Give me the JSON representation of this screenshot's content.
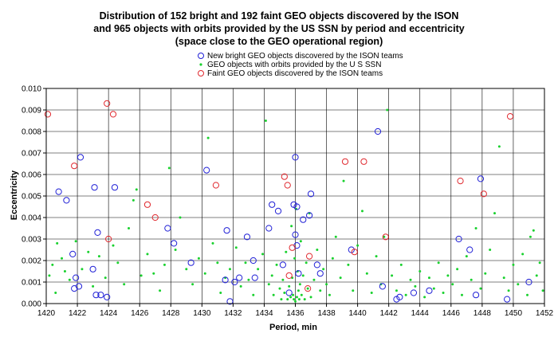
{
  "chart_data": {
    "type": "scatter",
    "title_lines": [
      "Distribution of 152 bright and 192 faint GEO objects discovered by the ISON",
      "and 965 objects with orbits provided by the US SSN by period and eccentricity",
      "(space close to the GEO operational region)"
    ],
    "xlabel": "Period, min",
    "ylabel": "Eccentricity",
    "xlim": [
      1420,
      1452
    ],
    "ylim": [
      0,
      0.01
    ],
    "x_ticks": [
      "1420",
      "1422",
      "1424",
      "1426",
      "1428",
      "1430",
      "1432",
      "1434",
      "1436",
      "1438",
      "1440",
      "1442",
      "1444",
      "1446",
      "1448",
      "1450",
      "1452"
    ],
    "y_ticks": [
      "0.000",
      "0.001",
      "0.002",
      "0.003",
      "0.004",
      "0.005",
      "0.006",
      "0.007",
      "0.008",
      "0.009",
      "0.010"
    ],
    "grid": true,
    "legend_position": "top-center",
    "series": [
      {
        "name": "New bright GEO objects discovered by the ISON teams",
        "marker": "open-circle",
        "color": "#1f1fd6",
        "points": [
          [
            1420.8,
            0.0052
          ],
          [
            1421.3,
            0.0048
          ],
          [
            1421.7,
            0.0023
          ],
          [
            1421.8,
            0.0007
          ],
          [
            1421.9,
            0.0012
          ],
          [
            1422.1,
            0.0008
          ],
          [
            1422.2,
            0.0068
          ],
          [
            1423.0,
            0.0016
          ],
          [
            1423.1,
            0.0054
          ],
          [
            1423.2,
            0.0004
          ],
          [
            1423.3,
            0.0033
          ],
          [
            1423.5,
            0.0004
          ],
          [
            1423.9,
            0.0003
          ],
          [
            1424.4,
            0.0054
          ],
          [
            1427.8,
            0.0035
          ],
          [
            1428.2,
            0.0028
          ],
          [
            1429.3,
            0.0019
          ],
          [
            1430.3,
            0.0062
          ],
          [
            1431.5,
            0.0011
          ],
          [
            1431.6,
            0.0034
          ],
          [
            1431.8,
            0.0001
          ],
          [
            1432.1,
            0.001
          ],
          [
            1432.4,
            0.0012
          ],
          [
            1432.9,
            0.0031
          ],
          [
            1433.4,
            0.0012
          ],
          [
            1433.3,
            0.002
          ],
          [
            1434.5,
            0.0046
          ],
          [
            1434.3,
            0.0035
          ],
          [
            1434.9,
            0.0043
          ],
          [
            1435.2,
            0.0018
          ],
          [
            1435.6,
            0.0005
          ],
          [
            1435.9,
            0.0046
          ],
          [
            1436.0,
            0.0068
          ],
          [
            1436.1,
            0.0045
          ],
          [
            1436.0,
            0.0032
          ],
          [
            1436.1,
            0.0027
          ],
          [
            1436.2,
            0.0014
          ],
          [
            1436.5,
            0.0039
          ],
          [
            1436.9,
            0.0041
          ],
          [
            1437.0,
            0.0051
          ],
          [
            1437.4,
            0.0018
          ],
          [
            1437.6,
            0.0014
          ],
          [
            1439.6,
            0.0025
          ],
          [
            1441.3,
            0.008
          ],
          [
            1441.6,
            0.0008
          ],
          [
            1442.5,
            0.0002
          ],
          [
            1442.7,
            0.0003
          ],
          [
            1443.6,
            0.0005
          ],
          [
            1444.6,
            0.0006
          ],
          [
            1446.5,
            0.003
          ],
          [
            1447.2,
            0.0025
          ],
          [
            1447.6,
            0.0004
          ],
          [
            1447.9,
            0.0058
          ],
          [
            1449.6,
            0.0002
          ],
          [
            1451.0,
            0.001
          ]
        ]
      },
      {
        "name": "GEO objects with orbits provided by the U S SSN",
        "marker": "dot",
        "color": "#19d12e",
        "points": [
          [
            1420.2,
            0.0013
          ],
          [
            1420.4,
            0.0018
          ],
          [
            1420.6,
            0.0005
          ],
          [
            1420.7,
            0.0028
          ],
          [
            1421.0,
            0.0021
          ],
          [
            1421.2,
            0.0015
          ],
          [
            1421.5,
            0.0011
          ],
          [
            1421.9,
            0.0029
          ],
          [
            1422.3,
            0.0016
          ],
          [
            1422.7,
            0.0024
          ],
          [
            1423.0,
            0.0008
          ],
          [
            1423.4,
            0.0022
          ],
          [
            1423.8,
            0.0012
          ],
          [
            1424.3,
            0.0027
          ],
          [
            1424.6,
            0.0019
          ],
          [
            1425.0,
            0.0009
          ],
          [
            1425.3,
            0.0035
          ],
          [
            1425.6,
            0.0048
          ],
          [
            1425.8,
            0.0053
          ],
          [
            1426.1,
            0.0013
          ],
          [
            1426.5,
            0.0023
          ],
          [
            1426.9,
            0.0014
          ],
          [
            1427.3,
            0.0006
          ],
          [
            1427.6,
            0.0018
          ],
          [
            1427.9,
            0.0063
          ],
          [
            1428.3,
            0.0025
          ],
          [
            1428.6,
            0.004
          ],
          [
            1429.0,
            0.0016
          ],
          [
            1429.4,
            0.0009
          ],
          [
            1429.8,
            0.0021
          ],
          [
            1430.2,
            0.0014
          ],
          [
            1430.4,
            0.0077
          ],
          [
            1430.7,
            0.0028
          ],
          [
            1431.0,
            0.0019
          ],
          [
            1431.2,
            0.0005
          ],
          [
            1431.5,
            0.0012
          ],
          [
            1431.8,
            0.0016
          ],
          [
            1432.2,
            0.0026
          ],
          [
            1432.5,
            0.0008
          ],
          [
            1432.8,
            0.0019
          ],
          [
            1433.0,
            0.0011
          ],
          [
            1433.3,
            0.0004
          ],
          [
            1433.6,
            0.0016
          ],
          [
            1433.9,
            0.0023
          ],
          [
            1434.1,
            0.0085
          ],
          [
            1434.3,
            0.0009
          ],
          [
            1434.5,
            0.0013
          ],
          [
            1434.6,
            0.0004
          ],
          [
            1434.8,
            0.0018
          ],
          [
            1435.0,
            0.0007
          ],
          [
            1435.1,
            0.0002
          ],
          [
            1435.2,
            0.0011
          ],
          [
            1435.3,
            0.0005
          ],
          [
            1435.4,
            0.0024
          ],
          [
            1435.5,
            0.0002
          ],
          [
            1435.6,
            0.0008
          ],
          [
            1435.7,
            0.0003
          ],
          [
            1435.75,
            0.0036
          ],
          [
            1435.8,
            0.0012
          ],
          [
            1435.85,
            0.0004
          ],
          [
            1435.9,
            0.0002
          ],
          [
            1435.95,
            0.0021
          ],
          [
            1436.0,
            0.0001
          ],
          [
            1436.05,
            0.0044
          ],
          [
            1436.1,
            0.0003
          ],
          [
            1436.15,
            0.0015
          ],
          [
            1436.2,
            0.0006
          ],
          [
            1436.25,
            0.0002
          ],
          [
            1436.3,
            0.0009
          ],
          [
            1436.35,
            0.0029
          ],
          [
            1436.4,
            0.0004
          ],
          [
            1436.5,
            0.0013
          ],
          [
            1436.6,
            0.0002
          ],
          [
            1436.7,
            0.0019
          ],
          [
            1436.8,
            0.0007
          ],
          [
            1436.9,
            0.0042
          ],
          [
            1437.0,
            0.0003
          ],
          [
            1437.2,
            0.0011
          ],
          [
            1437.4,
            0.0025
          ],
          [
            1437.6,
            0.0006
          ],
          [
            1437.8,
            0.0016
          ],
          [
            1438.0,
            0.0009
          ],
          [
            1438.2,
            0.0004
          ],
          [
            1438.4,
            0.0021
          ],
          [
            1438.6,
            0.0031
          ],
          [
            1438.9,
            0.0012
          ],
          [
            1439.1,
            0.0057
          ],
          [
            1439.4,
            0.0018
          ],
          [
            1439.7,
            0.0006
          ],
          [
            1440.0,
            0.0027
          ],
          [
            1440.3,
            0.0043
          ],
          [
            1440.6,
            0.0014
          ],
          [
            1440.9,
            0.0005
          ],
          [
            1441.2,
            0.0022
          ],
          [
            1441.5,
            0.0009
          ],
          [
            1441.7,
            0.0031
          ],
          [
            1441.9,
            0.009
          ],
          [
            1442.2,
            0.0013
          ],
          [
            1442.5,
            0.0006
          ],
          [
            1442.8,
            0.0018
          ],
          [
            1443.1,
            0.0004
          ],
          [
            1443.4,
            0.0011
          ],
          [
            1443.7,
            0.0008
          ],
          [
            1444.0,
            0.0015
          ],
          [
            1444.3,
            0.0003
          ],
          [
            1444.6,
            0.0012
          ],
          [
            1444.9,
            0.0007
          ],
          [
            1445.2,
            0.0019
          ],
          [
            1445.5,
            0.0005
          ],
          [
            1445.8,
            0.0013
          ],
          [
            1446.1,
            0.0009
          ],
          [
            1446.4,
            0.0016
          ],
          [
            1446.7,
            0.0004
          ],
          [
            1447.0,
            0.0022
          ],
          [
            1447.3,
            0.0011
          ],
          [
            1447.6,
            0.0035
          ],
          [
            1447.9,
            0.0007
          ],
          [
            1448.2,
            0.0014
          ],
          [
            1448.5,
            0.0025
          ],
          [
            1448.8,
            0.0042
          ],
          [
            1449.1,
            0.0073
          ],
          [
            1449.4,
            0.0012
          ],
          [
            1449.7,
            0.0006
          ],
          [
            1450.0,
            0.0018
          ],
          [
            1450.3,
            0.0009
          ],
          [
            1450.6,
            0.0023
          ],
          [
            1450.9,
            0.0004
          ],
          [
            1451.1,
            0.0031
          ],
          [
            1451.3,
            0.0034
          ],
          [
            1451.5,
            0.0013
          ],
          [
            1451.7,
            0.0019
          ],
          [
            1451.9,
            0.0006
          ]
        ]
      },
      {
        "name": "Faint GEO objects discovered by the ISON teams",
        "marker": "open-circle",
        "color": "#e0282e",
        "points": [
          [
            1420.1,
            0.0088
          ],
          [
            1421.8,
            0.0064
          ],
          [
            1423.9,
            0.0093
          ],
          [
            1424.3,
            0.0088
          ],
          [
            1424.0,
            0.003
          ],
          [
            1426.5,
            0.0046
          ],
          [
            1427.0,
            0.004
          ],
          [
            1430.9,
            0.0055
          ],
          [
            1435.3,
            0.0059
          ],
          [
            1435.5,
            0.0055
          ],
          [
            1435.8,
            0.0026
          ],
          [
            1435.6,
            0.0013
          ],
          [
            1436.9,
            0.0022
          ],
          [
            1436.8,
            0.0007
          ],
          [
            1439.2,
            0.0066
          ],
          [
            1439.8,
            0.0024
          ],
          [
            1440.4,
            0.0066
          ],
          [
            1441.8,
            0.0031
          ],
          [
            1446.6,
            0.0057
          ],
          [
            1448.1,
            0.0051
          ],
          [
            1449.8,
            0.0087
          ]
        ]
      }
    ]
  }
}
